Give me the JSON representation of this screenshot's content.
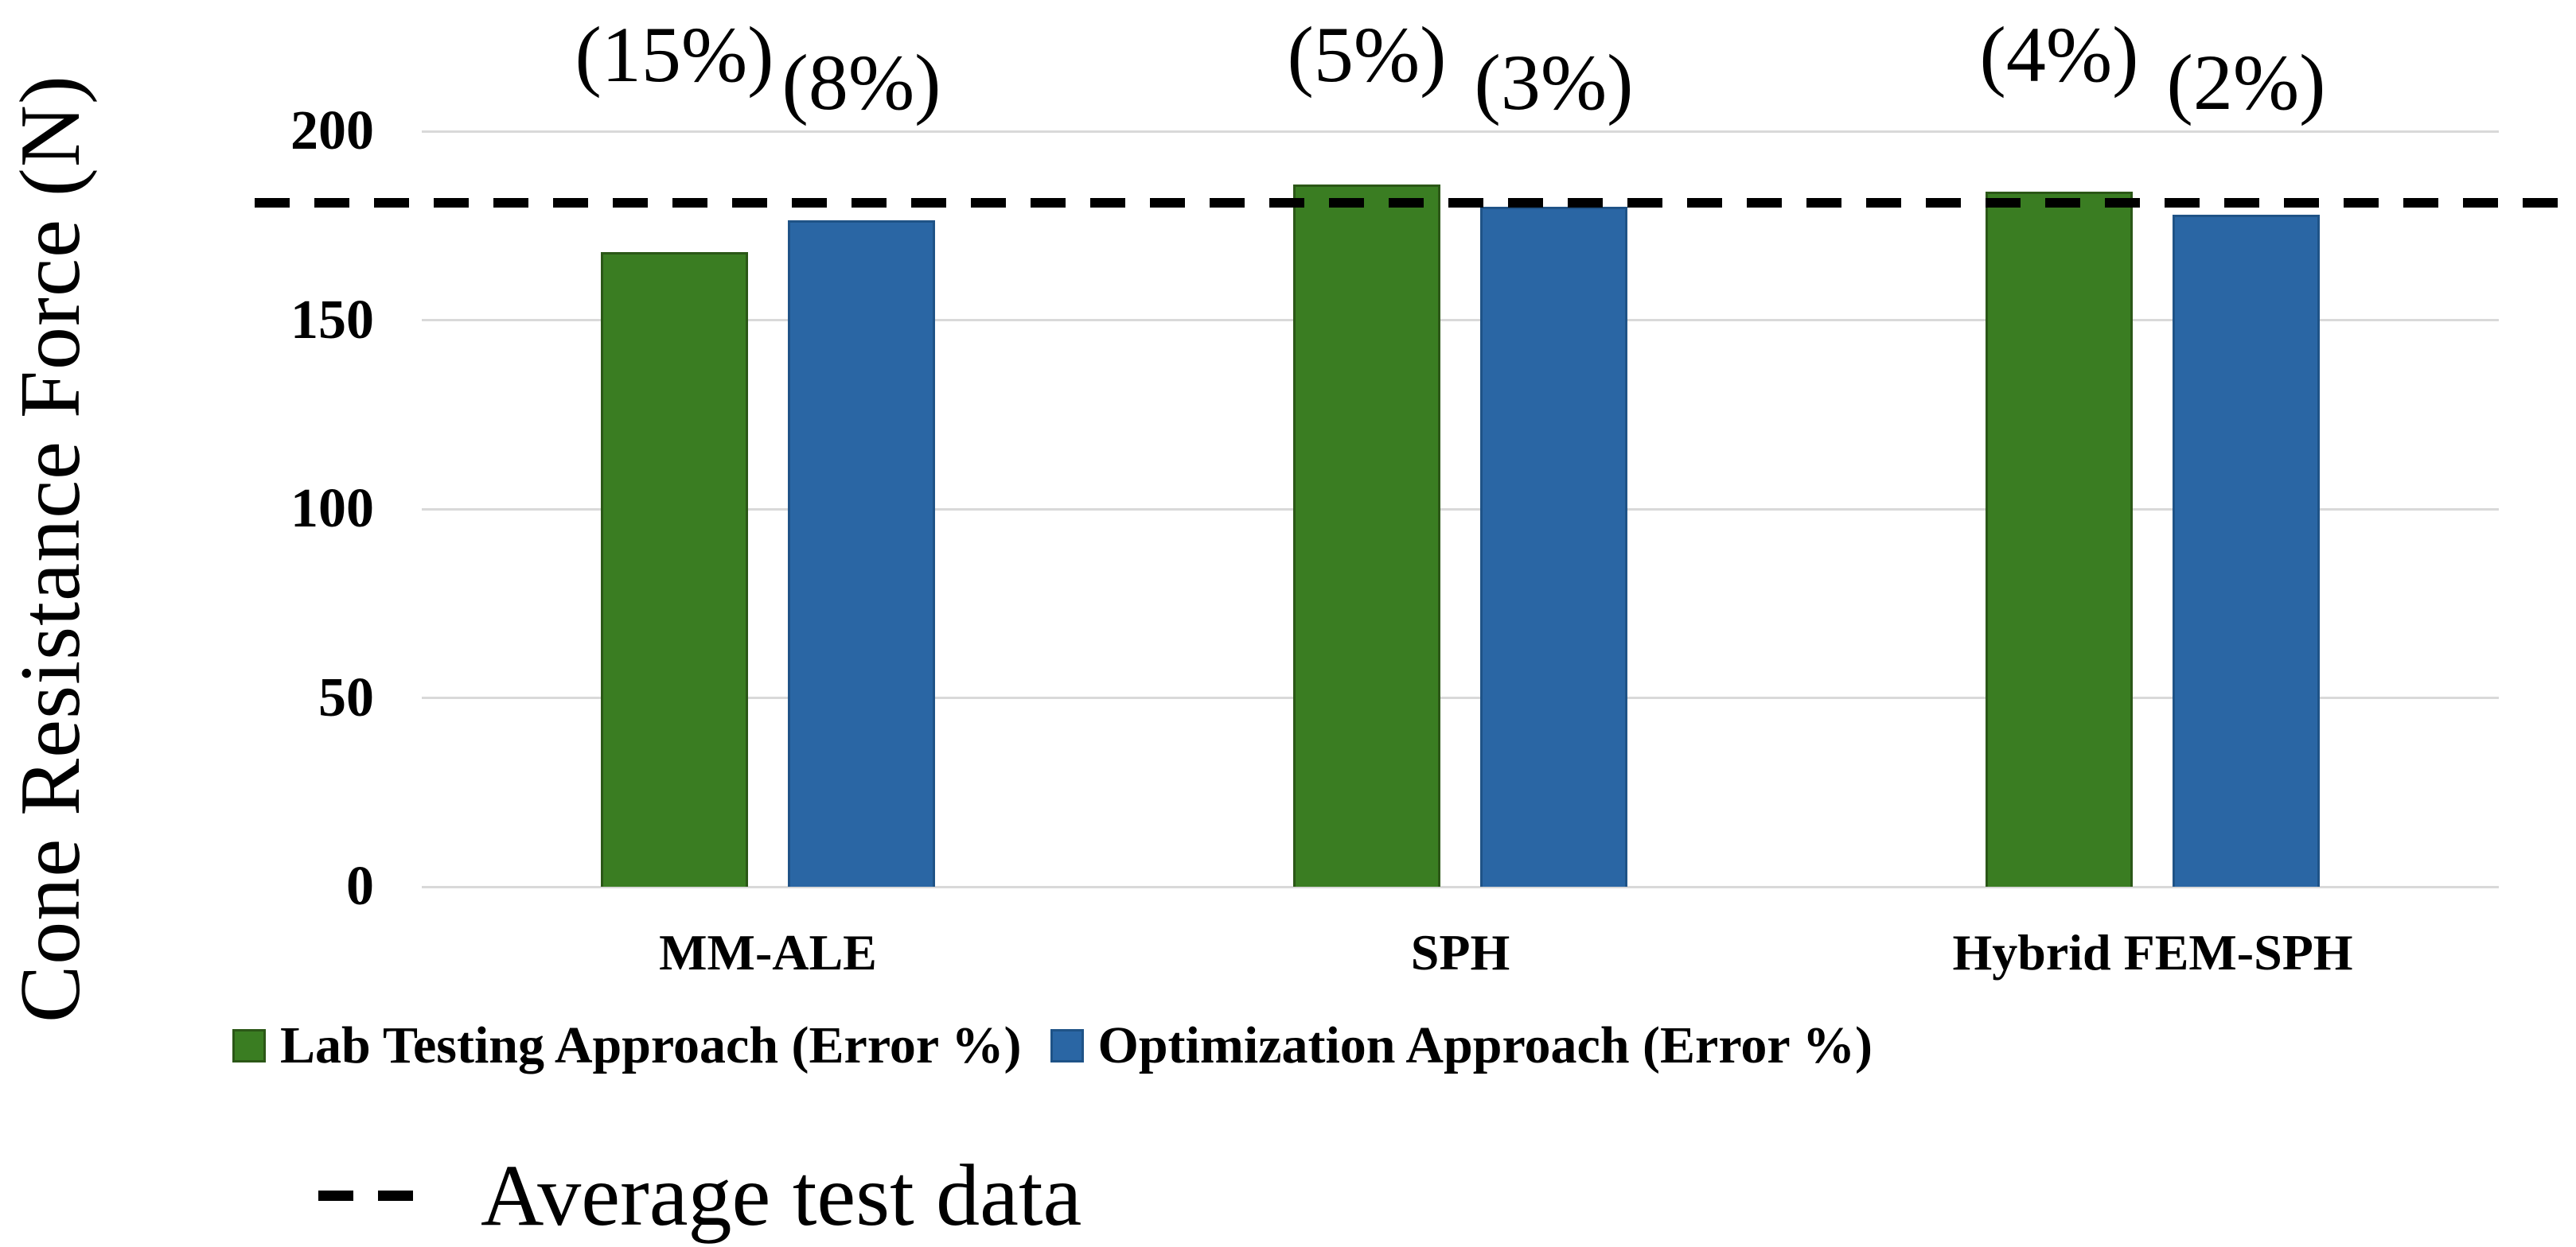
{
  "chart_data": {
    "type": "bar",
    "title": "",
    "xlabel": "",
    "ylabel": "Cone Resistance Force (N)",
    "categories": [
      "MM-ALE",
      "SPH",
      "Hybrid FEM-SPH"
    ],
    "series": [
      {
        "name": "Lab Testing Approach (Error %)",
        "color": "#3A7D22",
        "border_color": "#2B5717",
        "values": [
          168,
          186,
          184
        ],
        "error_labels": [
          "(15%)",
          "(5%)",
          "(4%)"
        ]
      },
      {
        "name": "Optimization Approach (Error %)",
        "color": "#2A66A4",
        "border_color": "#1F5387",
        "values": [
          176.5,
          180,
          178
        ],
        "error_labels": [
          "(8%)",
          "(3%)",
          "(2%)"
        ]
      }
    ],
    "reference_line": {
      "value": 181,
      "label": "Average test data",
      "color": "#000000",
      "style": "dashed"
    },
    "y_axis": {
      "min": 0,
      "max": 200,
      "ticks": [
        0,
        50,
        100,
        150,
        200
      ]
    },
    "grid": true,
    "gridline_color": "#d9d9d9",
    "legend_position": "bottom-left"
  }
}
